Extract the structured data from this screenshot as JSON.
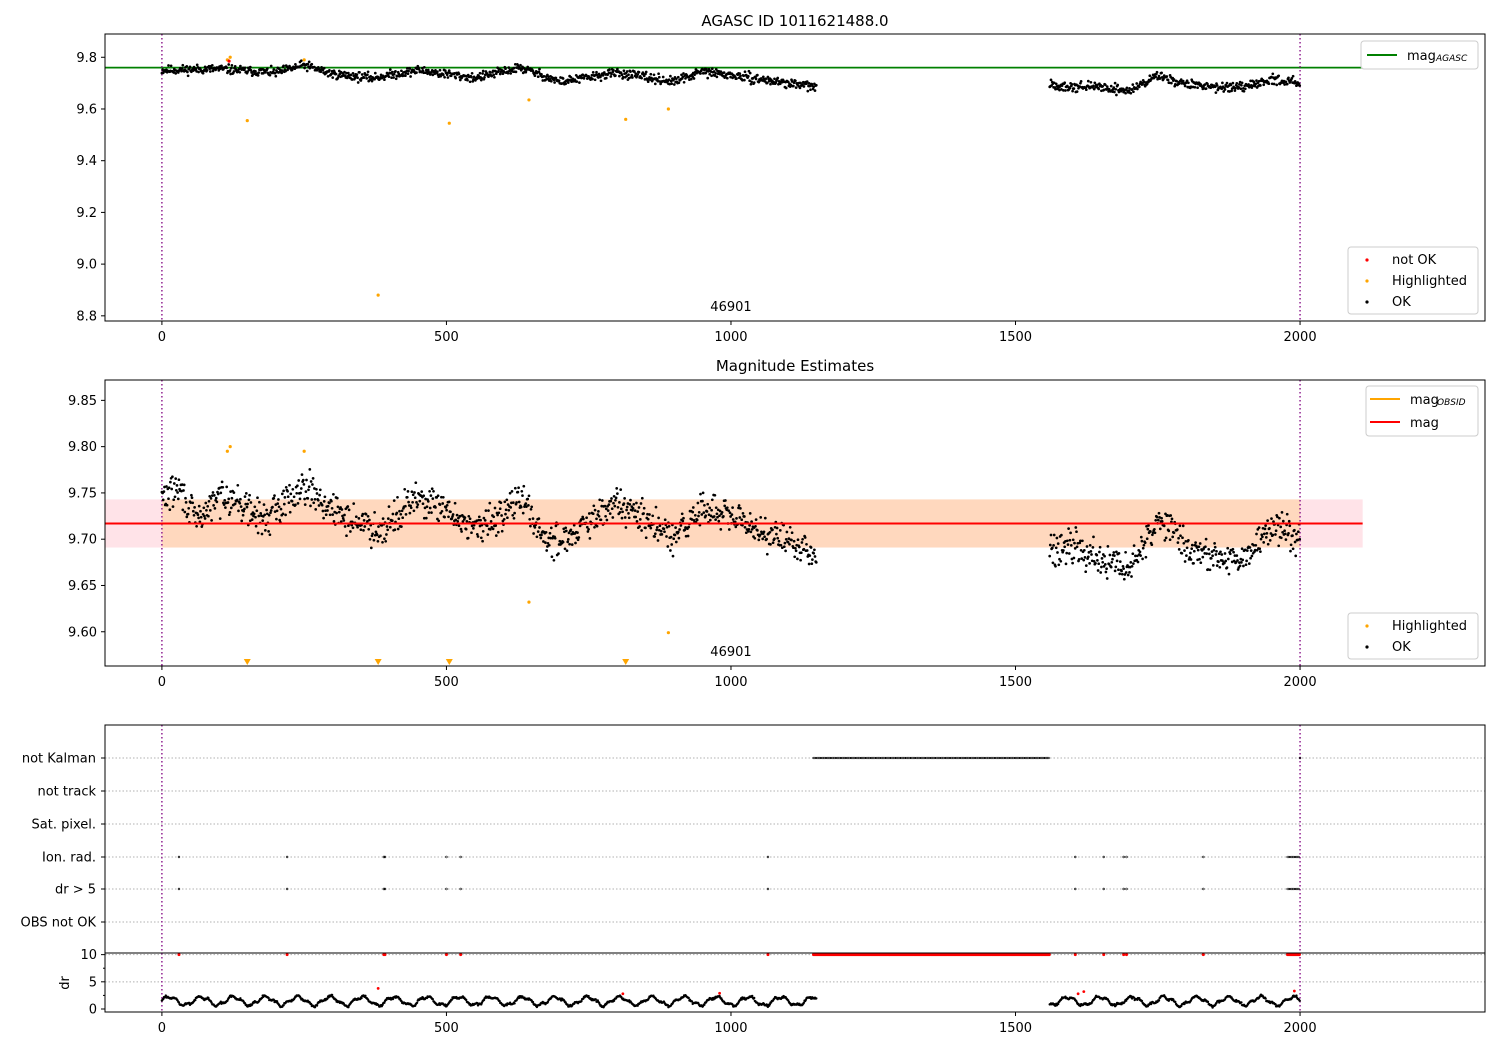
{
  "chart_data": [
    {
      "type": "scatter",
      "title": "AGASC ID 1011621488.0",
      "xlabel": "",
      "ylabel": "",
      "xlim": [
        -100,
        2325
      ],
      "ylim": [
        8.78,
        9.89
      ],
      "xticks": [
        0,
        500,
        1000,
        1500,
        2000
      ],
      "xtick_labels": [
        "0",
        "500",
        "1000",
        "1500",
        "2000"
      ],
      "yticks": [
        8.8,
        9.0,
        9.2,
        9.4,
        9.6,
        9.8
      ],
      "ytick_labels": [
        "8.8",
        "9.0",
        "9.2",
        "9.4",
        "9.6",
        "9.8"
      ],
      "obsid_label": "46901",
      "obsid_label_x": 1000,
      "obsid_boundaries": [
        0,
        2000
      ],
      "reference_line": {
        "name": "mag_AGASC",
        "y": 9.76,
        "x_range": [
          -100,
          2110
        ],
        "color": "#008000"
      },
      "legend": {
        "lines": [
          {
            "label": "mag",
            "sub": "AGASC",
            "color": "#008000"
          }
        ],
        "markers": [
          {
            "label": "not OK",
            "color": "#ff0000"
          },
          {
            "label": "Highlighted",
            "color": "#ffa500"
          },
          {
            "label": "OK",
            "color": "#000000"
          }
        ]
      },
      "segments": [
        {
          "x_range": [
            0,
            1150
          ],
          "knots": [
            [
              0,
              9.75
            ],
            [
              100,
              9.755
            ],
            [
              200,
              9.74
            ],
            [
              250,
              9.77
            ],
            [
              300,
              9.735
            ],
            [
              370,
              9.72
            ],
            [
              450,
              9.75
            ],
            [
              550,
              9.72
            ],
            [
              630,
              9.76
            ],
            [
              700,
              9.705
            ],
            [
              800,
              9.74
            ],
            [
              900,
              9.705
            ],
            [
              950,
              9.745
            ],
            [
              1050,
              9.715
            ],
            [
              1150,
              9.685
            ]
          ]
        },
        {
          "x_range": [
            1560,
            2000
          ],
          "knots": [
            [
              1560,
              9.69
            ],
            [
              1650,
              9.685
            ],
            [
              1700,
              9.67
            ],
            [
              1750,
              9.73
            ],
            [
              1800,
              9.695
            ],
            [
              1900,
              9.68
            ],
            [
              1950,
              9.715
            ],
            [
              2000,
              9.7
            ]
          ]
        }
      ],
      "highlighted": [
        [
          115,
          9.79
        ],
        [
          120,
          9.8
        ],
        [
          150,
          9.555
        ],
        [
          250,
          9.79
        ],
        [
          380,
          8.88
        ],
        [
          505,
          9.545
        ],
        [
          645,
          9.635
        ],
        [
          815,
          9.56
        ],
        [
          890,
          9.6
        ]
      ],
      "not_ok": [
        [
          118,
          9.785
        ]
      ]
    },
    {
      "type": "scatter",
      "title": "Magnitude Estimates",
      "xlabel": "",
      "ylabel": "",
      "xlim": [
        -100,
        2325
      ],
      "ylim": [
        9.563,
        9.872
      ],
      "xticks": [
        0,
        500,
        1000,
        1500,
        2000
      ],
      "xtick_labels": [
        "0",
        "500",
        "1000",
        "1500",
        "2000"
      ],
      "yticks": [
        9.6,
        9.65,
        9.7,
        9.75,
        9.8,
        9.85
      ],
      "ytick_labels": [
        "9.60",
        "9.65",
        "9.70",
        "9.75",
        "9.80",
        "9.85"
      ],
      "obsid_label": "46901",
      "obsid_label_x": 1000,
      "obsid_boundaries": [
        0,
        2000
      ],
      "mag_line": {
        "name": "mag",
        "y": 9.717,
        "x_range": [
          -100,
          2110
        ],
        "color": "#ff0000"
      },
      "mag_band": {
        "y_range": [
          9.691,
          9.743
        ],
        "x_range": [
          -100,
          2110
        ],
        "color": "#ffc0cb"
      },
      "obsid_band": {
        "y_range": [
          9.691,
          9.743
        ],
        "x_range": [
          0,
          2000
        ],
        "color": "#ffa500"
      },
      "legend": {
        "lines": [
          {
            "label": "mag",
            "sub": "OBSID",
            "color": "#ffa500"
          },
          {
            "label": "mag",
            "sub": "",
            "color": "#ff0000"
          }
        ],
        "markers": [
          {
            "label": "Highlighted",
            "color": "#ffa500"
          },
          {
            "label": "OK",
            "color": "#000000"
          }
        ]
      },
      "segments": [
        {
          "x_range": [
            0,
            1150
          ],
          "knots": [
            [
              0,
              9.745
            ],
            [
              30,
              9.755
            ],
            [
              60,
              9.72
            ],
            [
              110,
              9.75
            ],
            [
              180,
              9.72
            ],
            [
              250,
              9.76
            ],
            [
              300,
              9.73
            ],
            [
              380,
              9.71
            ],
            [
              450,
              9.745
            ],
            [
              560,
              9.71
            ],
            [
              630,
              9.745
            ],
            [
              680,
              9.695
            ],
            [
              750,
              9.715
            ],
            [
              800,
              9.74
            ],
            [
              900,
              9.7
            ],
            [
              950,
              9.735
            ],
            [
              1050,
              9.71
            ],
            [
              1150,
              9.685
            ]
          ]
        },
        {
          "x_range": [
            1560,
            2000
          ],
          "knots": [
            [
              1560,
              9.69
            ],
            [
              1610,
              9.695
            ],
            [
              1650,
              9.675
            ],
            [
              1700,
              9.67
            ],
            [
              1760,
              9.725
            ],
            [
              1800,
              9.69
            ],
            [
              1850,
              9.68
            ],
            [
              1900,
              9.675
            ],
            [
              1950,
              9.715
            ],
            [
              2000,
              9.705
            ]
          ]
        }
      ],
      "highlighted": [
        [
          115,
          9.795
        ],
        [
          120,
          9.8
        ],
        [
          250,
          9.795
        ],
        [
          645,
          9.632
        ],
        [
          890,
          9.599
        ]
      ],
      "below_range_markers": [
        150,
        380,
        505,
        815
      ]
    },
    {
      "type": "scatter",
      "title": "",
      "xlabel": "",
      "ylabel": "",
      "xlim": [
        -100,
        2325
      ],
      "xticks": [
        0,
        500,
        1000,
        1500,
        2000
      ],
      "xtick_labels": [
        "0",
        "500",
        "1000",
        "1500",
        "2000"
      ],
      "obsid_boundaries": [
        0,
        2000
      ],
      "flag_rows": [
        "not Kalman",
        "not track",
        "Sat. pixel.",
        "Ion. rad.",
        "dr > 5",
        "OBS not OK"
      ],
      "flags": {
        "not Kalman": {
          "ranges": [
            [
              1145,
              1560
            ]
          ],
          "points": [
            2000
          ]
        },
        "not track": {
          "ranges": [],
          "points": []
        },
        "Sat. pixel.": {
          "ranges": [],
          "points": []
        },
        "Ion. rad.": {
          "ranges": [
            [
              1978,
              2000
            ]
          ],
          "points": [
            30,
            220,
            390,
            392,
            500,
            525,
            1065,
            1605,
            1655,
            1690,
            1695,
            1830
          ]
        },
        "dr > 5": {
          "ranges": [
            [
              1978,
              2000
            ]
          ],
          "points": [
            30,
            220,
            390,
            392,
            500,
            525,
            1065,
            1605,
            1655,
            1690,
            1695,
            1830
          ]
        },
        "OBS not OK": {
          "ranges": [],
          "points": []
        }
      },
      "dr": {
        "ylabel": "dr",
        "ylim": [
          0,
          10.3
        ],
        "yticks": [
          0,
          5,
          10
        ],
        "ytick_labels": [
          "0",
          "5",
          "10"
        ],
        "segments": [
          [
            0,
            1150
          ],
          [
            1560,
            2000
          ]
        ],
        "clip_value": 10,
        "clipped_ranges": [
          [
            1145,
            1560
          ],
          [
            1978,
            2000
          ]
        ],
        "clipped_points": [
          30,
          220,
          390,
          392,
          500,
          525,
          1065,
          1605,
          1655,
          1690,
          1695,
          1830
        ],
        "red_points": [
          [
            380,
            3.8
          ],
          [
            810,
            2.8
          ],
          [
            980,
            2.9
          ],
          [
            1610,
            2.8
          ],
          [
            1620,
            3.2
          ],
          [
            1990,
            3.3
          ]
        ]
      }
    }
  ]
}
